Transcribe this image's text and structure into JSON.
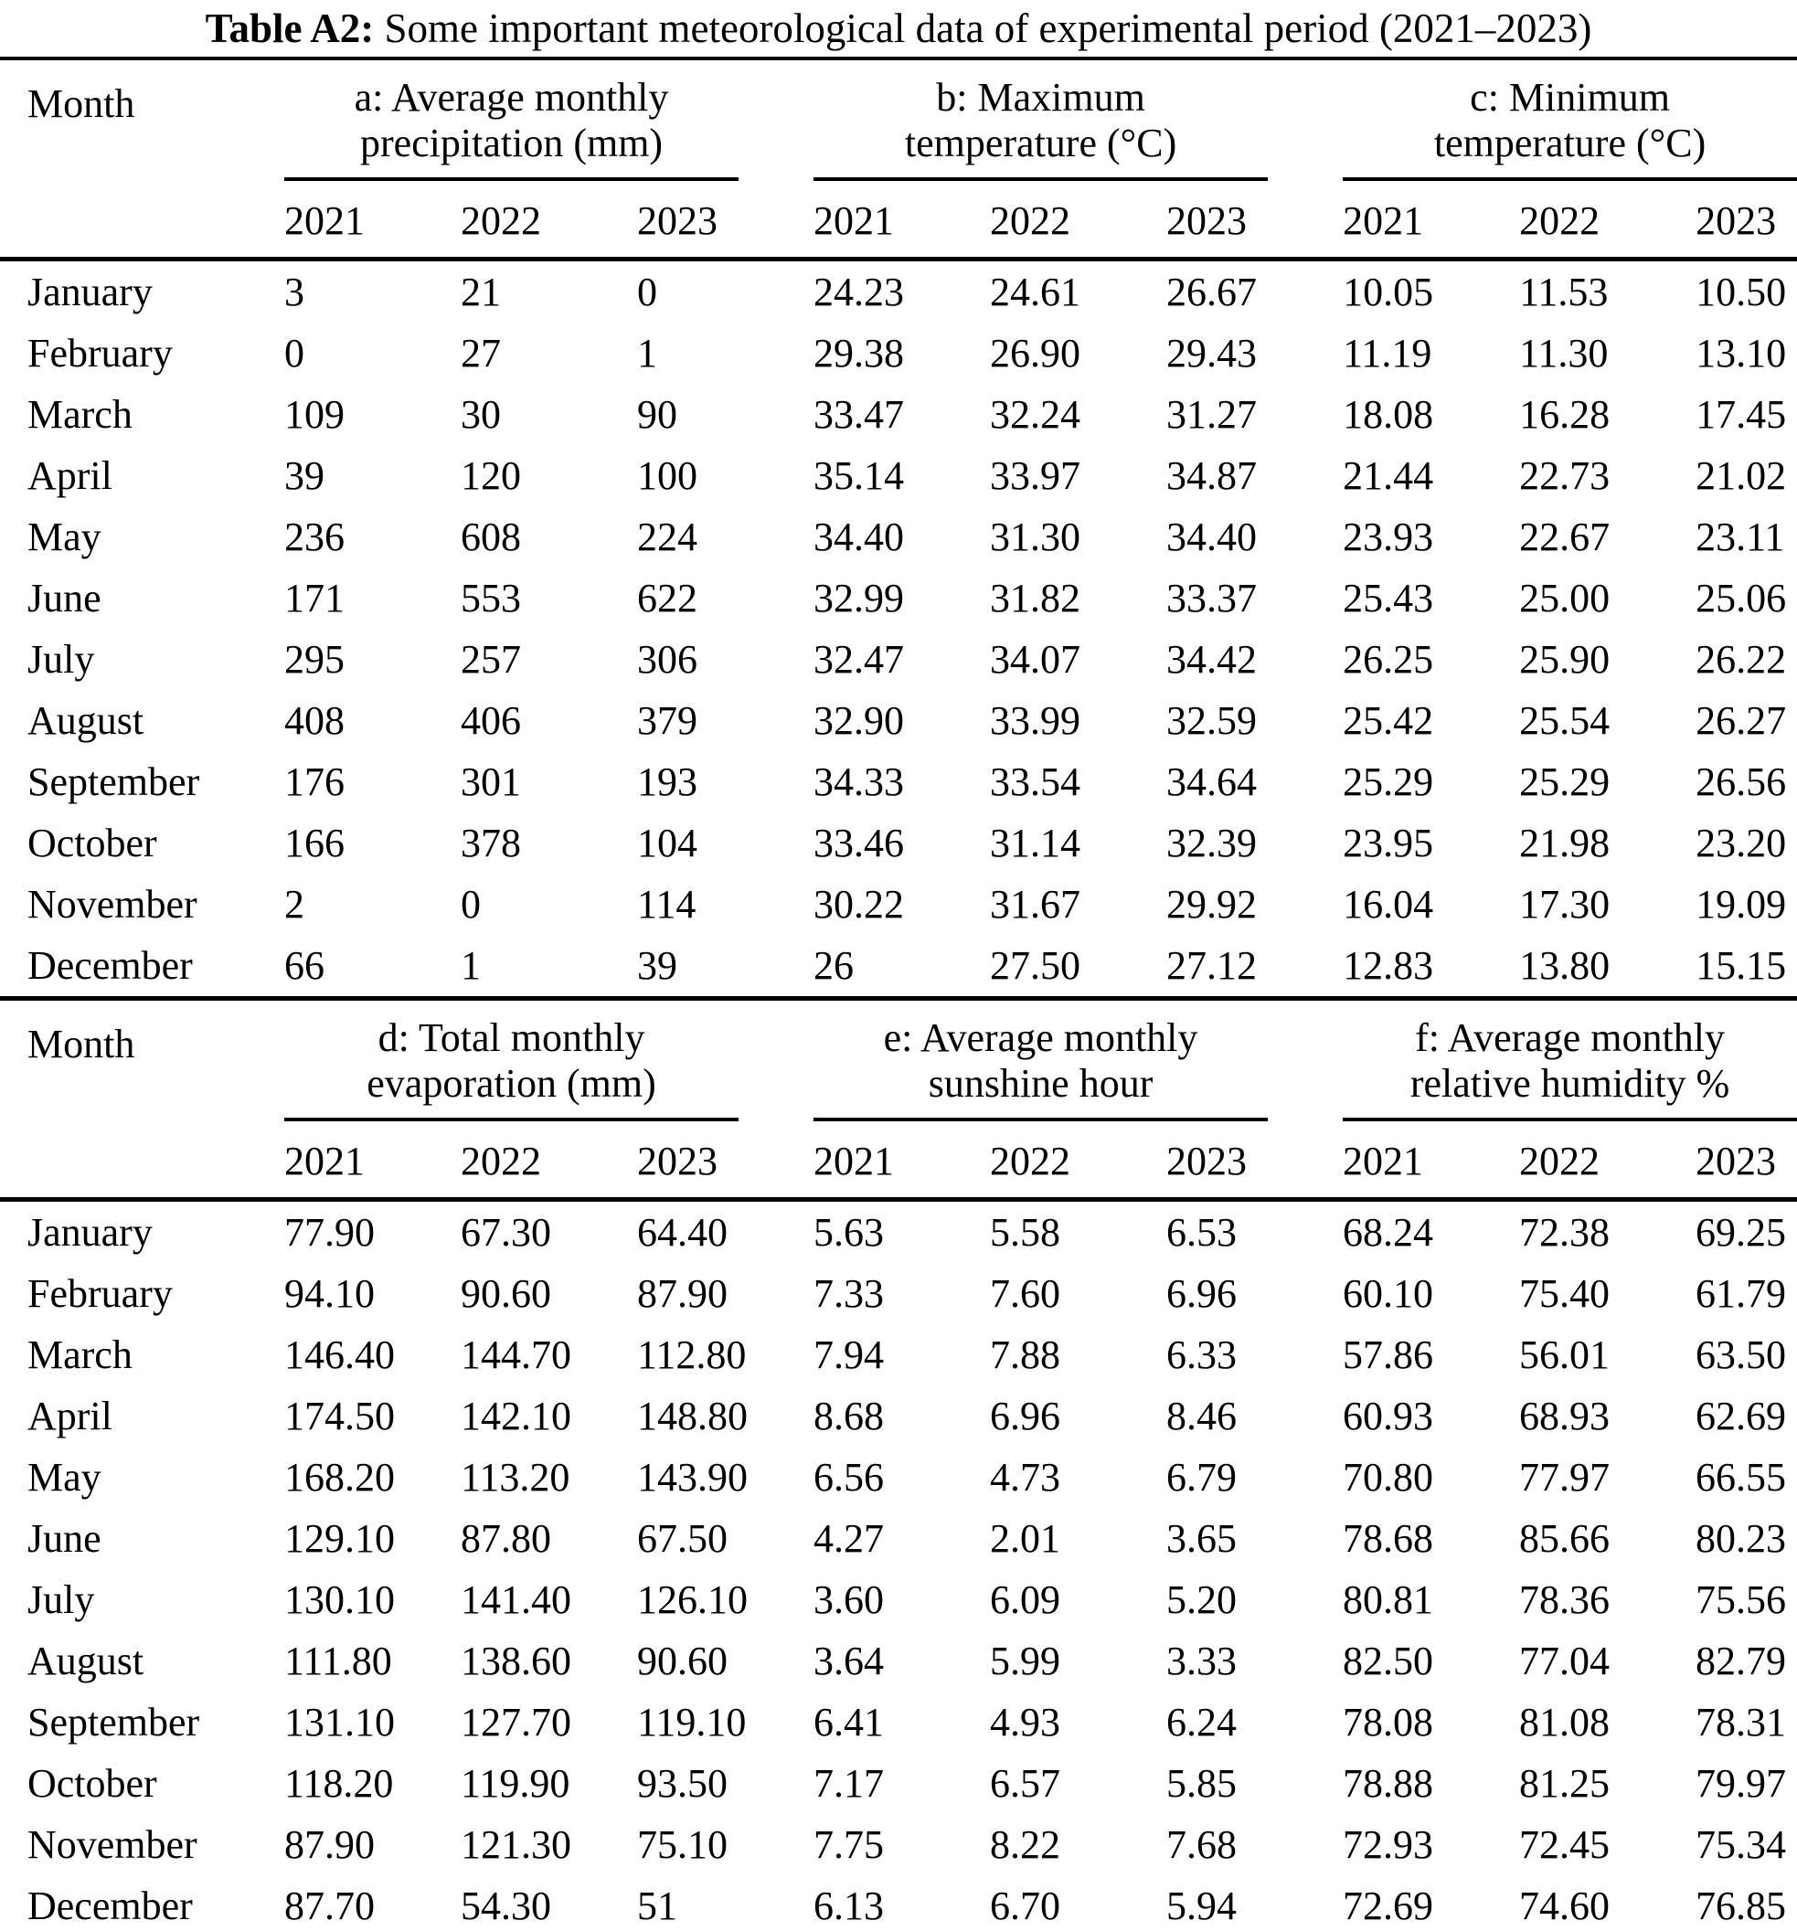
{
  "title": {
    "label": "Table A2:",
    "text": "Some important meteorological data of experimental period (2021–2023)"
  },
  "sections": [
    {
      "month_header": "Month",
      "groups": [
        {
          "line1": "a: Average monthly",
          "line2": "precipitation (mm)"
        },
        {
          "line1": "b: Maximum",
          "line2": "temperature (°C)"
        },
        {
          "line1": "c: Minimum",
          "line2": "temperature (°C)"
        }
      ],
      "years": [
        "2021",
        "2022",
        "2023"
      ],
      "rows": [
        {
          "month": "January",
          "values": [
            "3",
            "21",
            "0",
            "24.23",
            "24.61",
            "26.67",
            "10.05",
            "11.53",
            "10.50"
          ]
        },
        {
          "month": "February",
          "values": [
            "0",
            "27",
            "1",
            "29.38",
            "26.90",
            "29.43",
            "11.19",
            "11.30",
            "13.10"
          ]
        },
        {
          "month": "March",
          "values": [
            "109",
            "30",
            "90",
            "33.47",
            "32.24",
            "31.27",
            "18.08",
            "16.28",
            "17.45"
          ]
        },
        {
          "month": "April",
          "values": [
            "39",
            "120",
            "100",
            "35.14",
            "33.97",
            "34.87",
            "21.44",
            "22.73",
            "21.02"
          ]
        },
        {
          "month": "May",
          "values": [
            "236",
            "608",
            "224",
            "34.40",
            "31.30",
            "34.40",
            "23.93",
            "22.67",
            "23.11"
          ]
        },
        {
          "month": "June",
          "values": [
            "171",
            "553",
            "622",
            "32.99",
            "31.82",
            "33.37",
            "25.43",
            "25.00",
            "25.06"
          ]
        },
        {
          "month": "July",
          "values": [
            "295",
            "257",
            "306",
            "32.47",
            "34.07",
            "34.42",
            "26.25",
            "25.90",
            "26.22"
          ]
        },
        {
          "month": "August",
          "values": [
            "408",
            "406",
            "379",
            "32.90",
            "33.99",
            "32.59",
            "25.42",
            "25.54",
            "26.27"
          ]
        },
        {
          "month": "September",
          "values": [
            "176",
            "301",
            "193",
            "34.33",
            "33.54",
            "34.64",
            "25.29",
            "25.29",
            "26.56"
          ]
        },
        {
          "month": "October",
          "values": [
            "166",
            "378",
            "104",
            "33.46",
            "31.14",
            "32.39",
            "23.95",
            "21.98",
            "23.20"
          ]
        },
        {
          "month": "November",
          "values": [
            "2",
            "0",
            "114",
            "30.22",
            "31.67",
            "29.92",
            "16.04",
            "17.30",
            "19.09"
          ]
        },
        {
          "month": "December",
          "values": [
            "66",
            "1",
            "39",
            "26",
            "27.50",
            "27.12",
            "12.83",
            "13.80",
            "15.15"
          ]
        }
      ]
    },
    {
      "month_header": "Month",
      "groups": [
        {
          "line1": "d: Total monthly",
          "line2": "evaporation (mm)"
        },
        {
          "line1": "e: Average monthly",
          "line2": "sunshine hour"
        },
        {
          "line1": "f: Average monthly",
          "line2": "relative humidity %"
        }
      ],
      "years": [
        "2021",
        "2022",
        "2023"
      ],
      "rows": [
        {
          "month": "January",
          "values": [
            "77.90",
            "67.30",
            "64.40",
            "5.63",
            "5.58",
            "6.53",
            "68.24",
            "72.38",
            "69.25"
          ]
        },
        {
          "month": "February",
          "values": [
            "94.10",
            "90.60",
            "87.90",
            "7.33",
            "7.60",
            "6.96",
            "60.10",
            "75.40",
            "61.79"
          ]
        },
        {
          "month": "March",
          "values": [
            "146.40",
            "144.70",
            "112.80",
            "7.94",
            "7.88",
            "6.33",
            "57.86",
            "56.01",
            "63.50"
          ]
        },
        {
          "month": "April",
          "values": [
            "174.50",
            "142.10",
            "148.80",
            "8.68",
            "6.96",
            "8.46",
            "60.93",
            "68.93",
            "62.69"
          ]
        },
        {
          "month": "May",
          "values": [
            "168.20",
            "113.20",
            "143.90",
            "6.56",
            "4.73",
            "6.79",
            "70.80",
            "77.97",
            "66.55"
          ]
        },
        {
          "month": "June",
          "values": [
            "129.10",
            "87.80",
            "67.50",
            "4.27",
            "2.01",
            "3.65",
            "78.68",
            "85.66",
            "80.23"
          ]
        },
        {
          "month": "July",
          "values": [
            "130.10",
            "141.40",
            "126.10",
            "3.60",
            "6.09",
            "5.20",
            "80.81",
            "78.36",
            "75.56"
          ]
        },
        {
          "month": "August",
          "values": [
            "111.80",
            "138.60",
            "90.60",
            "3.64",
            "5.99",
            "3.33",
            "82.50",
            "77.04",
            "82.79"
          ]
        },
        {
          "month": "September",
          "values": [
            "131.10",
            "127.70",
            "119.10",
            "6.41",
            "4.93",
            "6.24",
            "78.08",
            "81.08",
            "78.31"
          ]
        },
        {
          "month": "October",
          "values": [
            "118.20",
            "119.90",
            "93.50",
            "7.17",
            "6.57",
            "5.85",
            "78.88",
            "81.25",
            "79.97"
          ]
        },
        {
          "month": "November",
          "values": [
            "87.90",
            "121.30",
            "75.10",
            "7.75",
            "8.22",
            "7.68",
            "72.93",
            "72.45",
            "75.34"
          ]
        },
        {
          "month": "December",
          "values": [
            "87.70",
            "54.30",
            "51",
            "6.13",
            "6.70",
            "5.94",
            "72.69",
            "74.60",
            "76.85"
          ]
        }
      ]
    }
  ]
}
